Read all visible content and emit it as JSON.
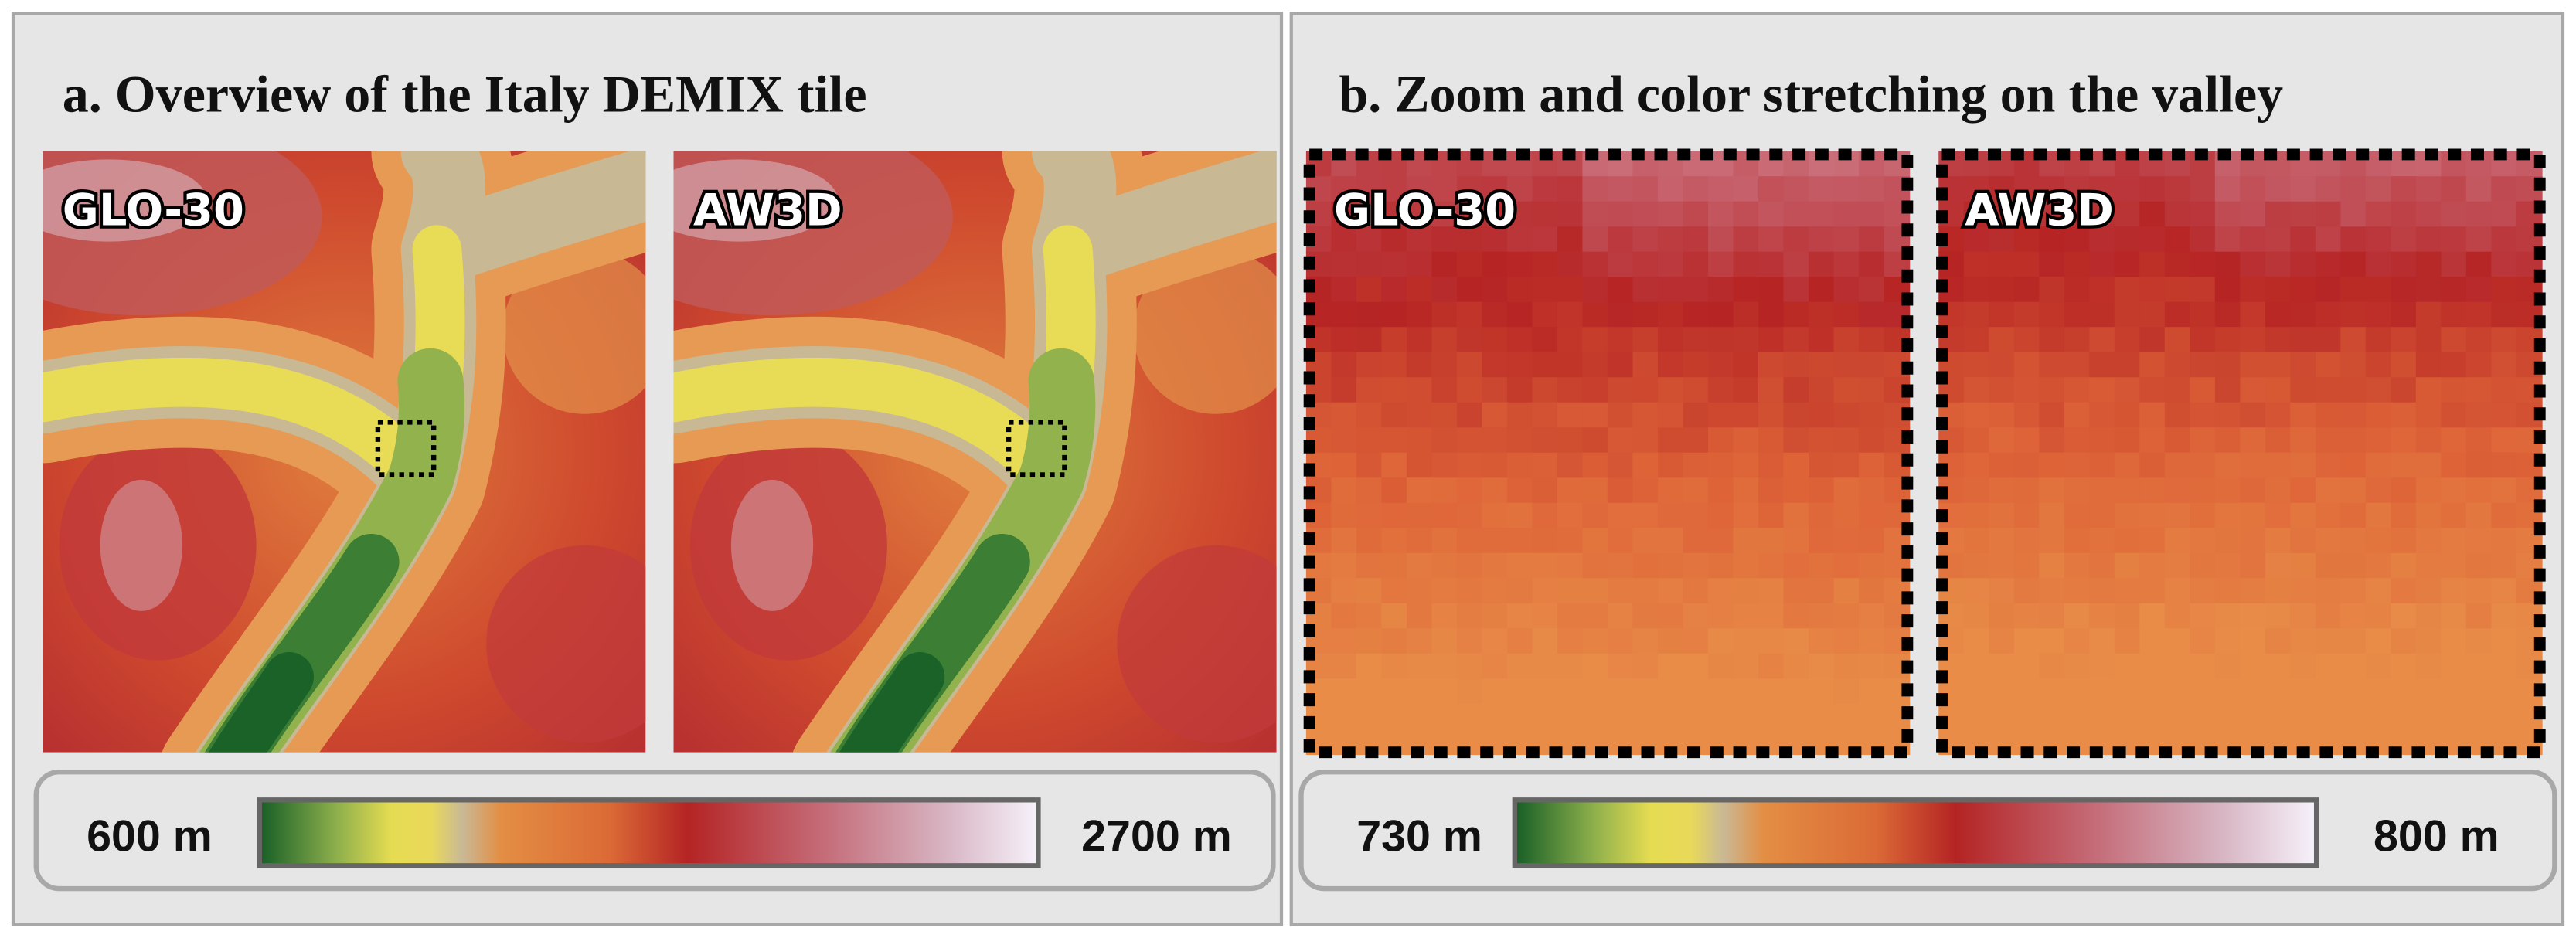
{
  "panel_a": {
    "title": "a. Overview of the Italy DEMIX tile",
    "maps": [
      {
        "label": "GLO-30"
      },
      {
        "label": "AW3D"
      }
    ],
    "colorbar": {
      "min_label": "600 m",
      "max_label": "2700 m"
    }
  },
  "panel_b": {
    "title": "b. Zoom and color stretching on the valley",
    "maps": [
      {
        "label": "GLO-30"
      },
      {
        "label": "AW3D"
      }
    ],
    "colorbar": {
      "min_label": "730 m",
      "max_label": "800 m"
    }
  }
}
